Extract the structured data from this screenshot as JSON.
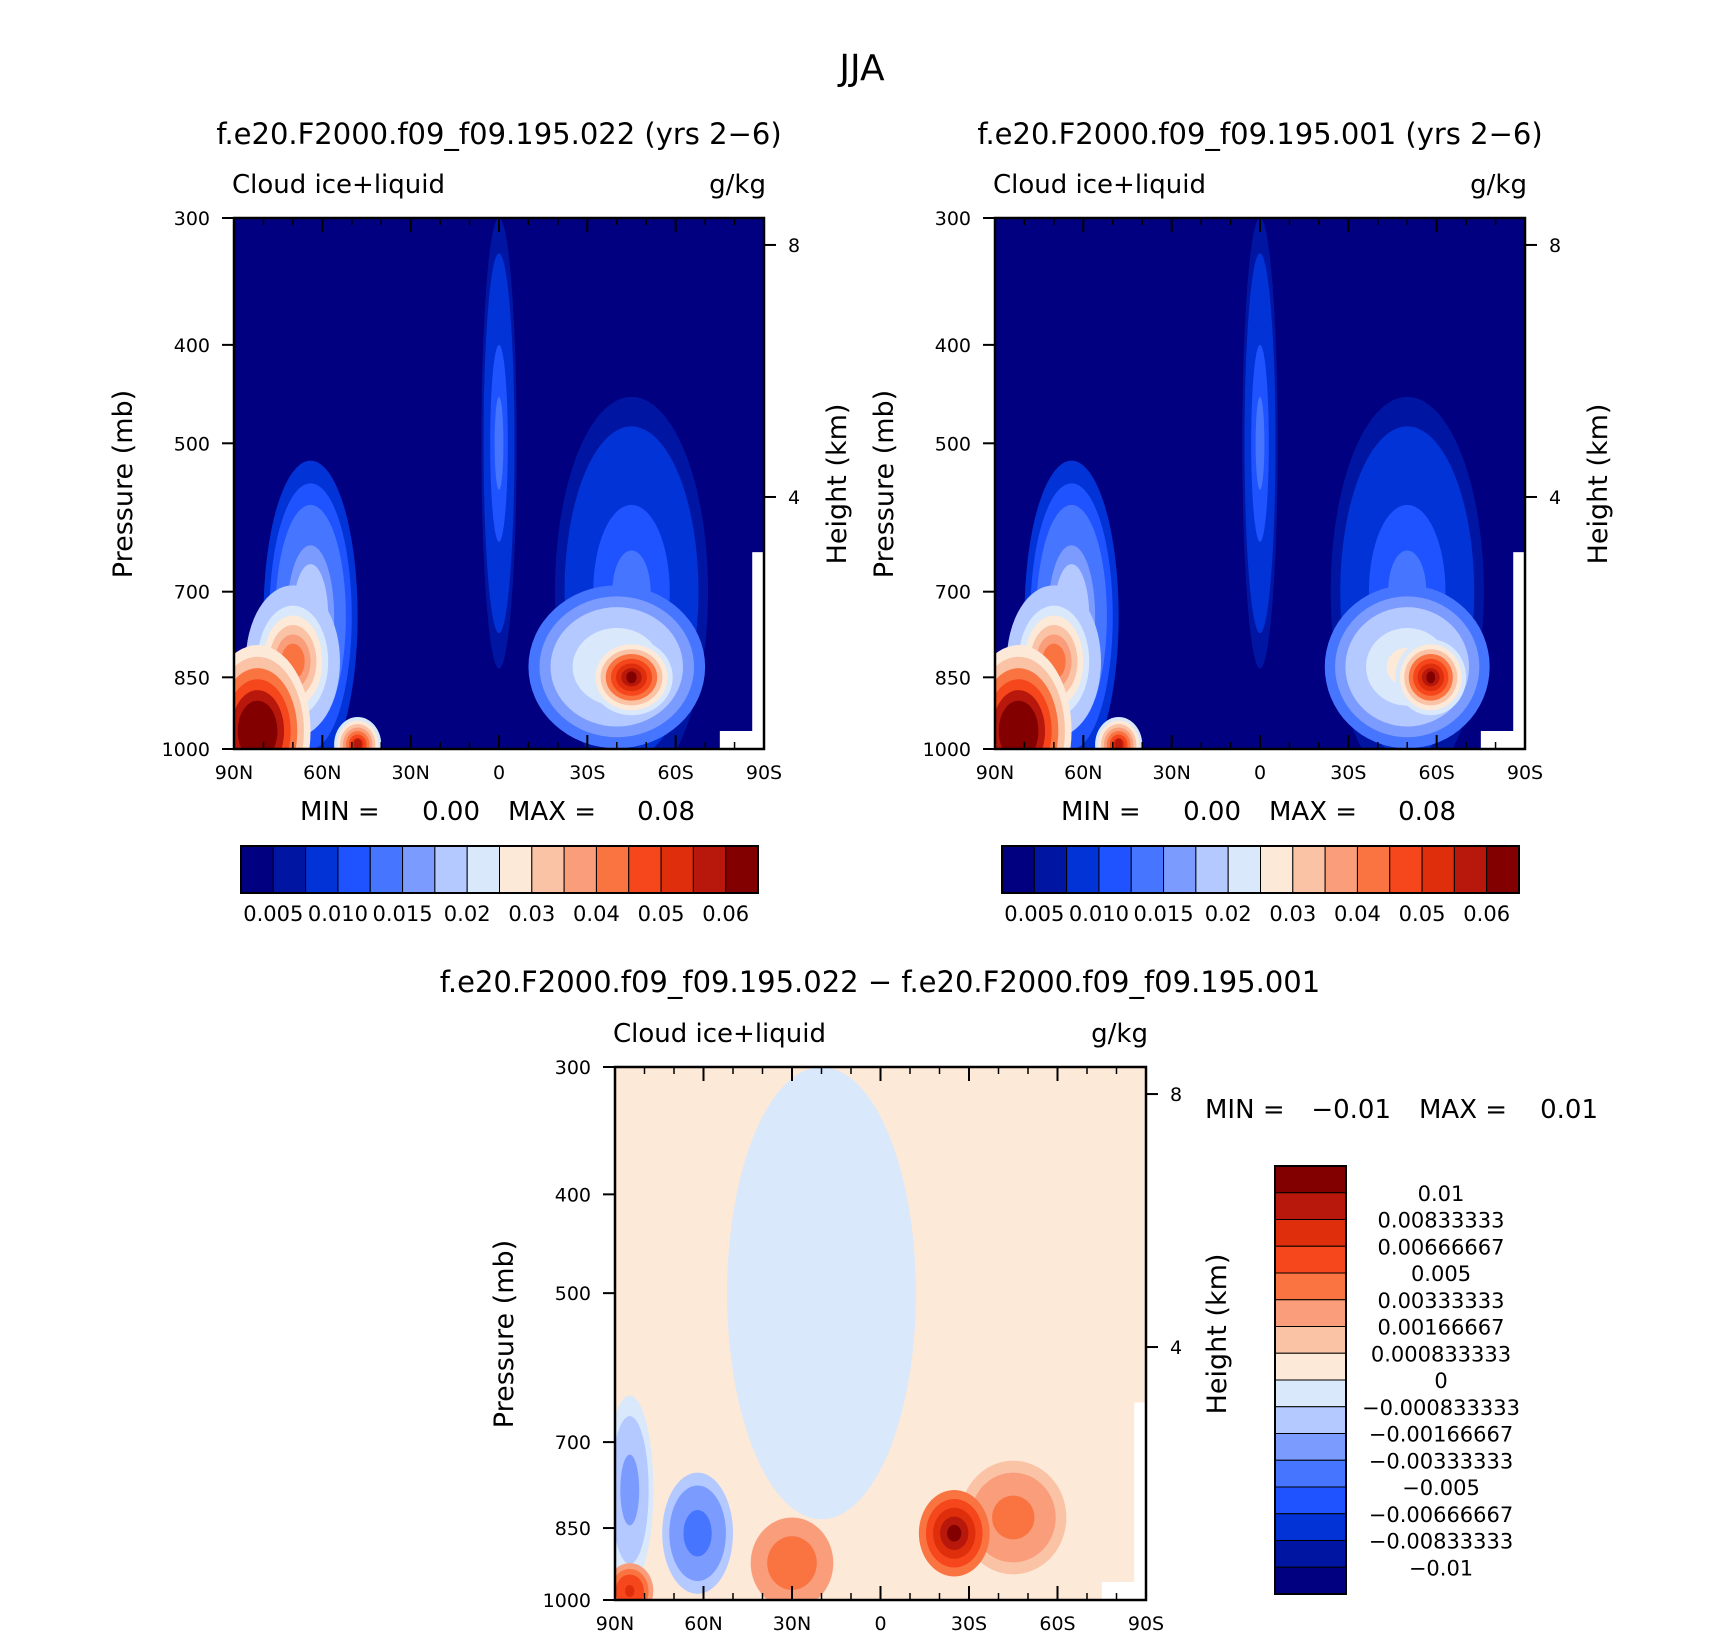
{
  "figure_title": "JJA",
  "colors": {
    "seq_palette": [
      "#000080",
      "#0016a3",
      "#0233d6",
      "#1e53ff",
      "#4676ff",
      "#7c9bff",
      "#b4c9ff",
      "#d9e8fb",
      "#fde9d8",
      "#fbc3a6",
      "#f99d7b",
      "#fa7441",
      "#f5461c",
      "#df2e0b",
      "#b8180b",
      "#820000"
    ],
    "diff_palette": [
      "#000080",
      "#0016a3",
      "#0233d6",
      "#1e53ff",
      "#4676ff",
      "#7c9bff",
      "#b4c9ff",
      "#d9e8fb",
      "#fde9d8",
      "#fbc3a6",
      "#f99d7b",
      "#fa7441",
      "#f5461c",
      "#df2e0b",
      "#b8180b",
      "#820000"
    ]
  },
  "chart_data": [
    {
      "type": "heatmap",
      "title": "f.e20.F2000.f09_f09.195.022 (yrs 2−6)",
      "left_label": "Cloud ice+liquid",
      "right_label": "g/kg",
      "xlabel": "",
      "ylabel": "Pressure (mb)",
      "y2label": "Height (km)",
      "x_ticks": [
        "90N",
        "60N",
        "30N",
        "0",
        "30S",
        "60S",
        "90S"
      ],
      "y_ticks": [
        "300",
        "400",
        "500",
        "700",
        "850",
        "1000"
      ],
      "y2_ticks": [
        "8",
        "4"
      ],
      "xlim": [
        90,
        -90
      ],
      "ylim": [
        1000,
        300
      ],
      "min_label": "MIN =",
      "min_value": "0.00",
      "max_label": "MAX =",
      "max_value": "0.08",
      "levels": [
        "0.005",
        "0.010",
        "0.015",
        "0.02",
        "0.03",
        "0.04",
        "0.05",
        "0.06"
      ],
      "features": [
        {
          "lat": 82,
          "p": 960,
          "value": 0.08,
          "extent_lat": 18,
          "extent_p": 170
        },
        {
          "lat": 70,
          "p": 820,
          "value": 0.045,
          "extent_lat": 16,
          "extent_p": 130
        },
        {
          "lat": 64,
          "p": 740,
          "value": 0.02,
          "extent_lat": 16,
          "extent_p": 220
        },
        {
          "lat": 48,
          "p": 990,
          "value": 0.06,
          "extent_lat": 8,
          "extent_p": 60
        },
        {
          "lat": -45,
          "p": 850,
          "value": 0.065,
          "extent_lat": 14,
          "extent_p": 70
        },
        {
          "lat": -40,
          "p": 830,
          "value": 0.03,
          "extent_lat": 30,
          "extent_p": 140
        },
        {
          "lat": -45,
          "p": 700,
          "value": 0.012,
          "extent_lat": 26,
          "extent_p": 250
        },
        {
          "lat": 0,
          "p": 500,
          "value": 0.012,
          "extent_lat": 6,
          "extent_p": 200
        }
      ]
    },
    {
      "type": "heatmap",
      "title": "f.e20.F2000.f09_f09.195.001 (yrs 2−6)",
      "left_label": "Cloud ice+liquid",
      "right_label": "g/kg",
      "xlabel": "",
      "ylabel": "Pressure (mb)",
      "y2label": "Height (km)",
      "x_ticks": [
        "90N",
        "60N",
        "30N",
        "0",
        "30S",
        "60S",
        "90S"
      ],
      "y_ticks": [
        "300",
        "400",
        "500",
        "700",
        "850",
        "1000"
      ],
      "y2_ticks": [
        "8",
        "4"
      ],
      "xlim": [
        90,
        -90
      ],
      "ylim": [
        1000,
        300
      ],
      "min_label": "MIN =",
      "min_value": "0.00",
      "max_label": "MAX =",
      "max_value": "0.08",
      "levels": [
        "0.005",
        "0.010",
        "0.015",
        "0.02",
        "0.03",
        "0.04",
        "0.05",
        "0.06"
      ],
      "features": [
        {
          "lat": 82,
          "p": 960,
          "value": 0.08,
          "extent_lat": 18,
          "extent_p": 170
        },
        {
          "lat": 70,
          "p": 820,
          "value": 0.045,
          "extent_lat": 16,
          "extent_p": 130
        },
        {
          "lat": 64,
          "p": 740,
          "value": 0.02,
          "extent_lat": 16,
          "extent_p": 220
        },
        {
          "lat": 48,
          "p": 990,
          "value": 0.06,
          "extent_lat": 8,
          "extent_p": 60
        },
        {
          "lat": -58,
          "p": 850,
          "value": 0.065,
          "extent_lat": 12,
          "extent_p": 70
        },
        {
          "lat": -50,
          "p": 830,
          "value": 0.03,
          "extent_lat": 28,
          "extent_p": 140
        },
        {
          "lat": -50,
          "p": 700,
          "value": 0.012,
          "extent_lat": 26,
          "extent_p": 250
        },
        {
          "lat": 0,
          "p": 500,
          "value": 0.012,
          "extent_lat": 6,
          "extent_p": 200
        }
      ]
    },
    {
      "type": "heatmap",
      "title": "f.e20.F2000.f09_f09.195.022 − f.e20.F2000.f09_f09.195.001",
      "left_label": "Cloud ice+liquid",
      "right_label": "g/kg",
      "xlabel": "",
      "ylabel": "Pressure (mb)",
      "y2label": "Height (km)",
      "x_ticks": [
        "90N",
        "60N",
        "30N",
        "0",
        "30S",
        "60S",
        "90S"
      ],
      "y_ticks": [
        "300",
        "400",
        "500",
        "700",
        "850",
        "1000"
      ],
      "y2_ticks": [
        "8",
        "4"
      ],
      "xlim": [
        90,
        -90
      ],
      "ylim": [
        1000,
        300
      ],
      "min_label": "MIN =",
      "min_value": "−0.01",
      "max_label": "MAX =",
      "max_value": "0.01",
      "levels": [
        "0.01",
        "0.00833333",
        "0.00666667",
        "0.005",
        "0.00333333",
        "0.00166667",
        "0.000833333",
        "0",
        "−0.000833333",
        "−0.00166667",
        "−0.00333333",
        "−0.005",
        "−0.00666667",
        "−0.00833333",
        "−0.01"
      ],
      "features": [
        {
          "lat": -25,
          "p": 860,
          "value": 0.01,
          "extent_lat": 12,
          "extent_p": 80
        },
        {
          "lat": -45,
          "p": 830,
          "value": 0.003,
          "extent_lat": 18,
          "extent_p": 100
        },
        {
          "lat": 30,
          "p": 920,
          "value": 0.004,
          "extent_lat": 14,
          "extent_p": 90
        },
        {
          "lat": 85,
          "p": 980,
          "value": 0.006,
          "extent_lat": 8,
          "extent_p": 60
        },
        {
          "lat": 62,
          "p": 860,
          "value": -0.005,
          "extent_lat": 12,
          "extent_p": 110
        },
        {
          "lat": 85,
          "p": 780,
          "value": -0.003,
          "extent_lat": 8,
          "extent_p": 150
        },
        {
          "lat": 20,
          "p": 500,
          "value": -0.0008,
          "extent_lat": 40,
          "extent_p": 300
        }
      ]
    }
  ]
}
